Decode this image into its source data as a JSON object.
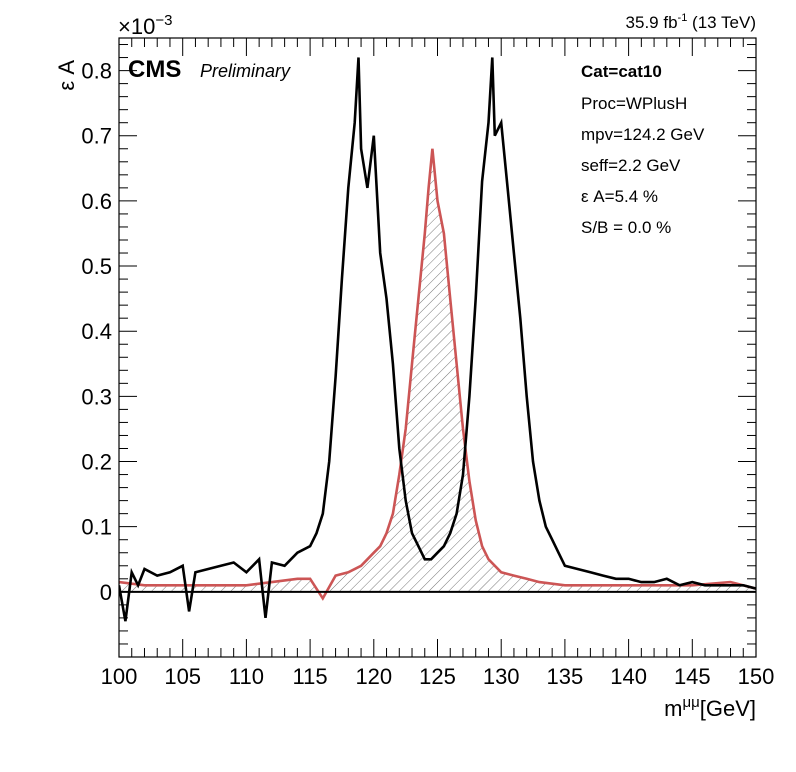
{
  "header": {
    "lumi_value": "35.9 fb",
    "lumi_sup": "-1",
    "lumi_energy": " (13 TeV)",
    "cms_label": "CMS",
    "prelim_label": "Preliminary"
  },
  "chart_data": {
    "type": "line",
    "xlabel_main": "m",
    "xlabel_sup": "μμ",
    "xlabel_unit": "[GeV]",
    "ylabel": "ε A",
    "y_multiplier_base": "×10",
    "y_multiplier_exp": "−3",
    "xlim": [
      100,
      150
    ],
    "ylim": [
      -0.1,
      0.85
    ],
    "xticks": [
      100,
      105,
      110,
      115,
      120,
      125,
      130,
      135,
      140,
      145,
      150
    ],
    "yticks": [
      0,
      0.1,
      0.2,
      0.3,
      0.4,
      0.5,
      0.6,
      0.7,
      0.8
    ],
    "ytick_labels": [
      "0",
      "0.1",
      "0.2",
      "0.3",
      "0.4",
      "0.5",
      "0.6",
      "0.7",
      "0.8"
    ],
    "grid": false,
    "annotations": [
      "Cat=cat10",
      "Proc=WPlusH",
      "mpv=124.2 GeV",
      "seff=2.2 GeV",
      "ε A=5.4 %",
      "S/B = 0.0 %"
    ],
    "series": [
      {
        "color": "#000000",
        "x": [
          100,
          100.5,
          101,
          101.5,
          102,
          103,
          104,
          105,
          105.5,
          106,
          107,
          108,
          109,
          110,
          111,
          111.5,
          112,
          113,
          114,
          115,
          115.5,
          116,
          116.5,
          117,
          117.5,
          118,
          118.5,
          118.8,
          119,
          119.5,
          120,
          120.5,
          121,
          121.5,
          122,
          122.5,
          123,
          123.5,
          124,
          124.5,
          125,
          125.5,
          126,
          126.5,
          127,
          127.5,
          128,
          128.5,
          129,
          129.3,
          129.5,
          130,
          130.5,
          131,
          131.5,
          132,
          132.5,
          133,
          133.5,
          134,
          134.5,
          135,
          136,
          137,
          138,
          139,
          140,
          141,
          142,
          143,
          144,
          145,
          146,
          147,
          148,
          149,
          150
        ],
        "y": [
          0.01,
          -0.045,
          0.03,
          0.01,
          0.035,
          0.025,
          0.03,
          0.04,
          -0.03,
          0.03,
          0.035,
          0.04,
          0.045,
          0.03,
          0.05,
          -0.04,
          0.045,
          0.04,
          0.06,
          0.07,
          0.09,
          0.12,
          0.2,
          0.33,
          0.48,
          0.62,
          0.72,
          0.82,
          0.68,
          0.62,
          0.7,
          0.52,
          0.45,
          0.35,
          0.22,
          0.14,
          0.09,
          0.07,
          0.05,
          0.05,
          0.06,
          0.07,
          0.09,
          0.12,
          0.18,
          0.3,
          0.45,
          0.63,
          0.72,
          0.82,
          0.7,
          0.72,
          0.62,
          0.52,
          0.42,
          0.3,
          0.2,
          0.14,
          0.1,
          0.08,
          0.06,
          0.04,
          0.035,
          0.03,
          0.025,
          0.02,
          0.02,
          0.015,
          0.015,
          0.02,
          0.01,
          0.015,
          0.01,
          0.01,
          0.01,
          0.01,
          0.005
        ]
      },
      {
        "color": "#cc5555",
        "fill": "hatched",
        "x": [
          100,
          102,
          105,
          108,
          110,
          112,
          114,
          115,
          116,
          117,
          118,
          119,
          120,
          120.5,
          121,
          121.5,
          122,
          122.5,
          123,
          123.5,
          124,
          124.3,
          124.6,
          125,
          125.5,
          126,
          126.5,
          127,
          127.5,
          128,
          128.5,
          129,
          130,
          131,
          132,
          133,
          135,
          140,
          145,
          148,
          150
        ],
        "y": [
          0.015,
          0.01,
          0.01,
          0.01,
          0.01,
          0.015,
          0.02,
          0.02,
          -0.01,
          0.025,
          0.03,
          0.04,
          0.06,
          0.07,
          0.09,
          0.12,
          0.18,
          0.25,
          0.35,
          0.45,
          0.55,
          0.62,
          0.68,
          0.6,
          0.55,
          0.45,
          0.35,
          0.25,
          0.17,
          0.11,
          0.07,
          0.05,
          0.03,
          0.025,
          0.02,
          0.015,
          0.01,
          0.01,
          0.01,
          0.015,
          0.005
        ]
      }
    ]
  }
}
